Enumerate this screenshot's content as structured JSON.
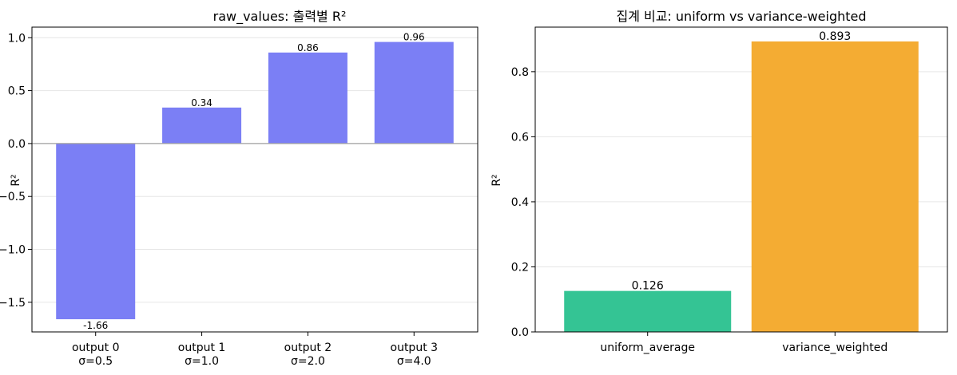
{
  "chart_data": [
    {
      "type": "bar",
      "title": "raw_values: 출력별 R²",
      "xlabel": "",
      "ylabel": "R²",
      "categories": [
        "output 0\nσ=0.5",
        "output 1\nσ=1.0",
        "output 2\nσ=2.0",
        "output 3\nσ=4.0"
      ],
      "values": [
        -1.66,
        0.34,
        0.86,
        0.96
      ],
      "value_labels": [
        "-1.66",
        "0.34",
        "0.86",
        "0.96"
      ],
      "ylim": [
        -1.78,
        1.1
      ],
      "yticks": [
        -1.5,
        -1.0,
        -0.5,
        0.0,
        0.5,
        1.0
      ],
      "ytick_labels": [
        "−1.5",
        "−1.0",
        "−0.5",
        "0.0",
        "0.5",
        "1.0"
      ],
      "colors": [
        "#7b7ff5",
        "#7b7ff5",
        "#7b7ff5",
        "#7b7ff5"
      ],
      "zero_line": true,
      "grid": "y"
    },
    {
      "type": "bar",
      "title": "집계 비교: uniform vs variance-weighted",
      "xlabel": "",
      "ylabel": "R²",
      "categories": [
        "uniform_average",
        "variance_weighted"
      ],
      "values": [
        0.126,
        0.893
      ],
      "value_labels": [
        "0.126",
        "0.893"
      ],
      "ylim": [
        0,
        0.937
      ],
      "yticks": [
        0.0,
        0.2,
        0.4,
        0.6,
        0.8
      ],
      "ytick_labels": [
        "0.0",
        "0.2",
        "0.4",
        "0.6",
        "0.8"
      ],
      "colors": [
        "#34c494",
        "#f4ac33"
      ],
      "zero_line": false,
      "grid": "y"
    }
  ]
}
